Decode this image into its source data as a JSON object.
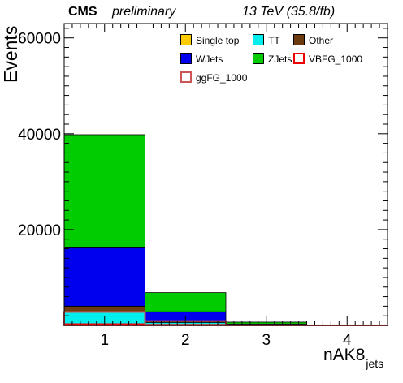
{
  "header": {
    "experiment": "CMS",
    "status": "preliminary",
    "energy": "13 TeV (35.8/fb)"
  },
  "chart_data": {
    "type": "bar",
    "stacked": true,
    "xlabel_main": "nAK8",
    "xlabel_sub": "jets",
    "ylabel": "Events",
    "categories": [
      "1",
      "2",
      "3",
      "4"
    ],
    "x_ticks": [
      "1",
      "2",
      "3",
      "4"
    ],
    "y_ticks": [
      "20000",
      "40000",
      "60000"
    ],
    "ylim": [
      0,
      63000
    ],
    "xlim": [
      0.5,
      4.5
    ],
    "series": [
      {
        "name": "Single top",
        "color": "#ffcc00",
        "values": [
          200,
          20,
          2,
          0
        ]
      },
      {
        "name": "TT",
        "color": "#00eeee",
        "values": [
          2600,
          600,
          60,
          5
        ]
      },
      {
        "name": "Other",
        "color": "#6b3a0f",
        "values": [
          1200,
          120,
          20,
          2
        ]
      },
      {
        "name": "WJets",
        "color": "#0000ee",
        "values": [
          12200,
          2100,
          200,
          10
        ]
      },
      {
        "name": "ZJets",
        "color": "#00cc00",
        "values": [
          23600,
          4000,
          400,
          30
        ]
      }
    ],
    "signals": [
      {
        "name": "VBFG_1000",
        "color": "#ee0000",
        "values": [
          250,
          110,
          15,
          2
        ]
      },
      {
        "name": "ggFG_1000",
        "color": "#cc5555",
        "values": [
          2800,
          900,
          20,
          2
        ]
      }
    ],
    "legend_position": "top-right"
  }
}
